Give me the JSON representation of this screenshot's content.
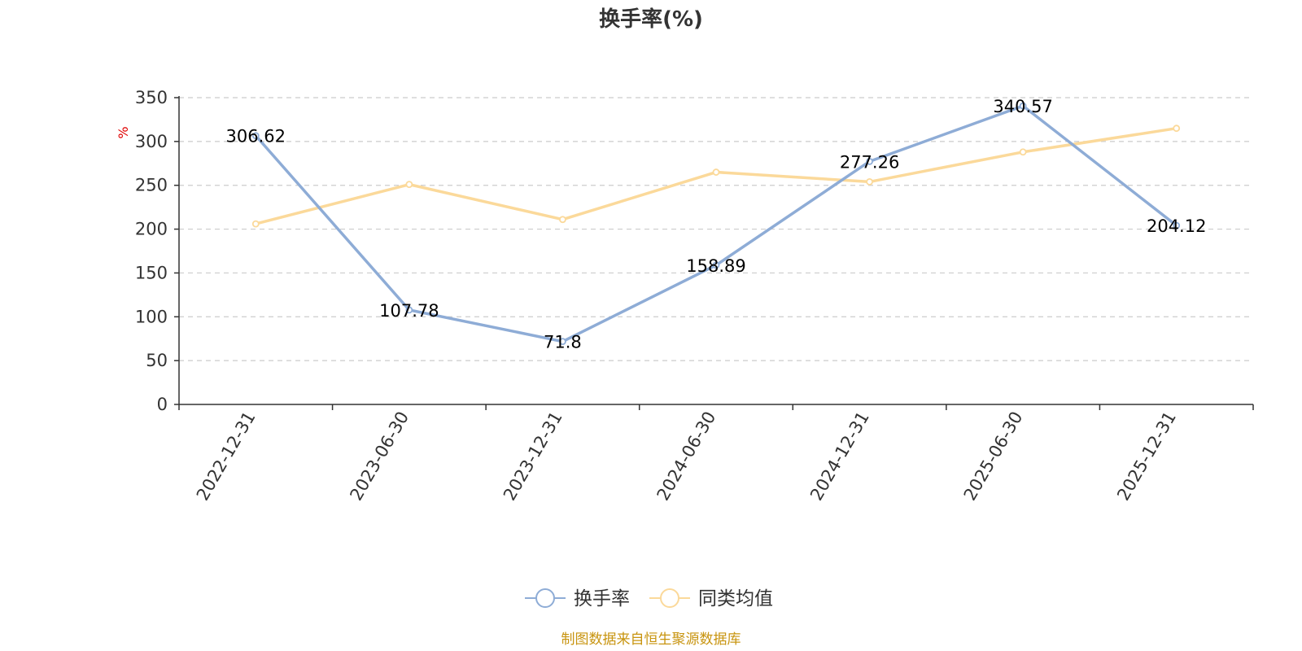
{
  "chart_data": {
    "type": "line",
    "title": "换手率(%)",
    "y_unit": "%",
    "categories": [
      "2022-12-31",
      "2023-06-30",
      "2023-12-31",
      "2024-06-30",
      "2024-12-31",
      "2025-06-30",
      "2025-12-31"
    ],
    "ylim": [
      0,
      350
    ],
    "yticks": [
      0,
      50,
      100,
      150,
      200,
      250,
      300,
      350
    ],
    "grid": true,
    "legend_position": "bottom-center",
    "series": [
      {
        "name": "换手率",
        "color": "#8eacd6",
        "values": [
          306.62,
          107.78,
          71.8,
          158.89,
          277.26,
          340.57,
          204.12
        ],
        "labels": [
          "306.62",
          "107.78",
          "71.8",
          "158.89",
          "277.26",
          "340.57",
          "204.12"
        ]
      },
      {
        "name": "同类均值",
        "color": "#fbd99a",
        "values": [
          206,
          251,
          211,
          265,
          254,
          288,
          315
        ]
      }
    ],
    "source": "制图数据来自恒生聚源数据库"
  }
}
